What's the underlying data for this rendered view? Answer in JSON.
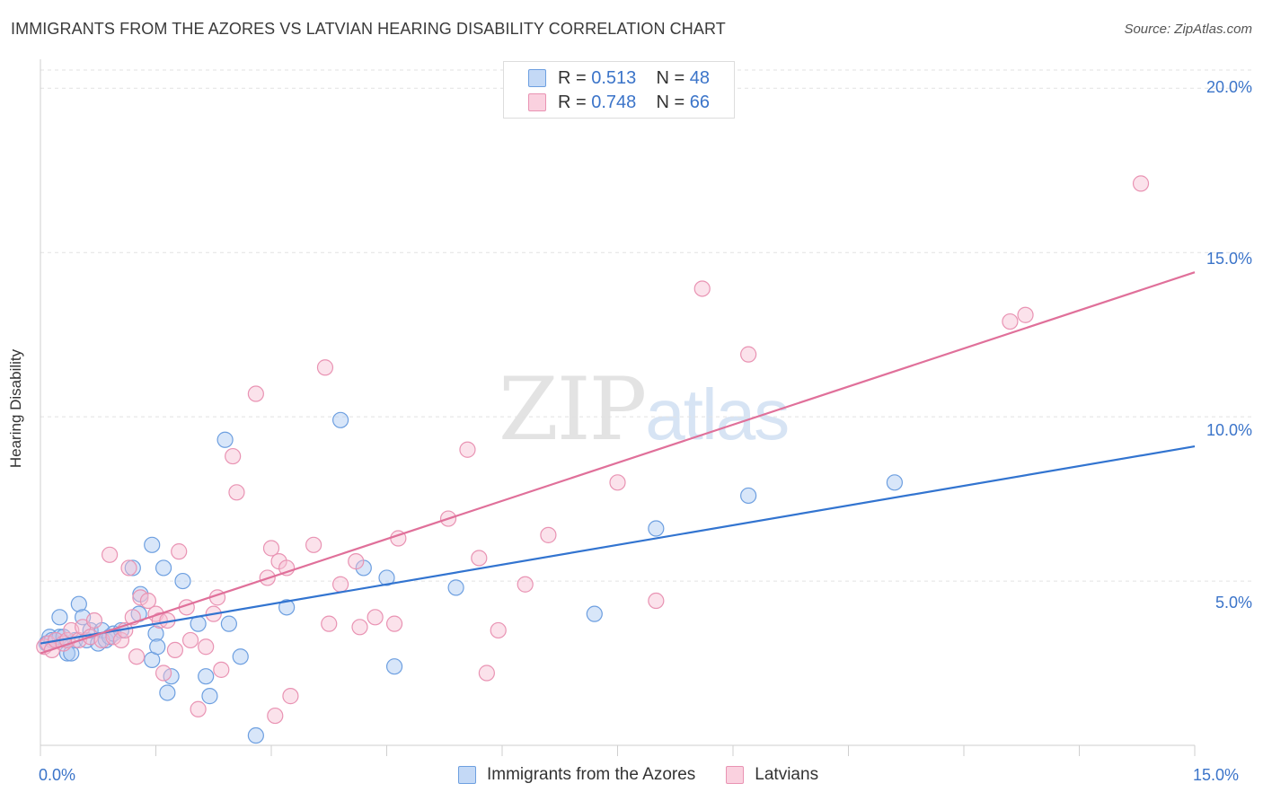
{
  "header": {
    "title": "IMMIGRANTS FROM THE AZORES VS LATVIAN HEARING DISABILITY CORRELATION CHART",
    "source": "Source: ZipAtlas.com"
  },
  "watermark": {
    "zip": "ZIP",
    "atlas": "atlas"
  },
  "legend_top": [
    {
      "r_label": "R =",
      "r_value": "0.513",
      "n_label": "N =",
      "n_value": "48"
    },
    {
      "r_label": "R =",
      "r_value": "0.748",
      "n_label": "N =",
      "n_value": "66"
    }
  ],
  "legend_bottom": [
    {
      "label": "Immigrants from the Azores"
    },
    {
      "label": "Latvians"
    }
  ],
  "axes": {
    "y_title": "Hearing Disability",
    "x_min_label": "0.0%",
    "x_max_label": "15.0%",
    "y_ticks": [
      "5.0%",
      "10.0%",
      "15.0%",
      "20.0%"
    ]
  },
  "colors": {
    "blue_fill": "#a9c8f2",
    "blue_stroke": "#6d9fe0",
    "blue_line": "#3274d0",
    "pink_fill": "#f6bfd2",
    "pink_stroke": "#e993b3",
    "pink_line": "#e0709a",
    "tick_label": "#3b74c9",
    "grid": "#e2e2e2"
  },
  "chart_data": {
    "type": "scatter",
    "title": "IMMIGRANTS FROM THE AZORES VS LATVIAN HEARING DISABILITY CORRELATION CHART",
    "xlabel": "",
    "ylabel": "Hearing Disability",
    "xlim": [
      0,
      15
    ],
    "ylim": [
      0,
      20.5
    ],
    "grid": true,
    "legend_position": "top-center",
    "series": [
      {
        "name": "Immigrants from the Azores",
        "r": 0.513,
        "n": 48,
        "trend": {
          "x": [
            0,
            15
          ],
          "y": [
            3.1,
            9.1
          ]
        },
        "points": [
          [
            0.08,
            3.1
          ],
          [
            0.12,
            3.3
          ],
          [
            0.15,
            3.2
          ],
          [
            0.2,
            3.2
          ],
          [
            0.25,
            3.3
          ],
          [
            0.25,
            3.9
          ],
          [
            0.35,
            2.8
          ],
          [
            0.4,
            2.8
          ],
          [
            0.45,
            3.2
          ],
          [
            0.5,
            4.3
          ],
          [
            0.55,
            3.9
          ],
          [
            0.6,
            3.2
          ],
          [
            0.65,
            3.5
          ],
          [
            0.75,
            3.1
          ],
          [
            0.8,
            3.5
          ],
          [
            0.85,
            3.2
          ],
          [
            0.9,
            3.3
          ],
          [
            0.95,
            3.4
          ],
          [
            1.05,
            3.5
          ],
          [
            1.2,
            5.4
          ],
          [
            1.28,
            4.0
          ],
          [
            1.3,
            4.6
          ],
          [
            1.45,
            2.6
          ],
          [
            1.45,
            6.1
          ],
          [
            1.5,
            3.4
          ],
          [
            1.52,
            3.0
          ],
          [
            1.6,
            5.4
          ],
          [
            1.65,
            1.6
          ],
          [
            1.7,
            2.1
          ],
          [
            1.85,
            5.0
          ],
          [
            2.05,
            3.7
          ],
          [
            2.15,
            2.1
          ],
          [
            2.2,
            1.5
          ],
          [
            2.4,
            9.3
          ],
          [
            2.45,
            3.7
          ],
          [
            2.6,
            2.7
          ],
          [
            2.8,
            0.3
          ],
          [
            3.2,
            4.2
          ],
          [
            3.9,
            9.9
          ],
          [
            4.2,
            5.4
          ],
          [
            4.5,
            5.1
          ],
          [
            4.6,
            2.4
          ],
          [
            5.4,
            4.8
          ],
          [
            7.2,
            4.0
          ],
          [
            8.0,
            6.6
          ],
          [
            9.2,
            7.6
          ],
          [
            11.1,
            8.0
          ],
          [
            0.3,
            3.3
          ]
        ]
      },
      {
        "name": "Latvians",
        "r": 0.748,
        "n": 66,
        "trend": {
          "x": [
            0,
            15
          ],
          "y": [
            2.8,
            14.4
          ]
        },
        "points": [
          [
            0.05,
            3.0
          ],
          [
            0.1,
            3.1
          ],
          [
            0.15,
            2.9
          ],
          [
            0.2,
            3.2
          ],
          [
            0.3,
            3.1
          ],
          [
            0.35,
            3.2
          ],
          [
            0.4,
            3.5
          ],
          [
            0.5,
            3.2
          ],
          [
            0.55,
            3.6
          ],
          [
            0.65,
            3.3
          ],
          [
            0.7,
            3.8
          ],
          [
            0.8,
            3.2
          ],
          [
            0.9,
            5.8
          ],
          [
            0.95,
            3.3
          ],
          [
            1.05,
            3.2
          ],
          [
            1.1,
            3.5
          ],
          [
            1.15,
            5.4
          ],
          [
            1.2,
            3.9
          ],
          [
            1.25,
            2.7
          ],
          [
            1.3,
            4.5
          ],
          [
            1.4,
            4.4
          ],
          [
            1.5,
            4.0
          ],
          [
            1.55,
            3.8
          ],
          [
            1.6,
            2.2
          ],
          [
            1.65,
            3.8
          ],
          [
            1.75,
            2.9
          ],
          [
            1.8,
            5.9
          ],
          [
            1.9,
            4.2
          ],
          [
            1.95,
            3.2
          ],
          [
            2.05,
            1.1
          ],
          [
            2.15,
            3.0
          ],
          [
            2.25,
            4.0
          ],
          [
            2.3,
            4.5
          ],
          [
            2.35,
            2.3
          ],
          [
            2.5,
            8.8
          ],
          [
            2.55,
            7.7
          ],
          [
            2.8,
            10.7
          ],
          [
            2.95,
            5.1
          ],
          [
            3.0,
            6.0
          ],
          [
            3.05,
            0.9
          ],
          [
            3.1,
            5.6
          ],
          [
            3.2,
            5.4
          ],
          [
            3.25,
            1.5
          ],
          [
            3.55,
            6.1
          ],
          [
            3.7,
            11.5
          ],
          [
            3.75,
            3.7
          ],
          [
            3.9,
            4.9
          ],
          [
            4.1,
            5.6
          ],
          [
            4.15,
            3.6
          ],
          [
            4.35,
            3.9
          ],
          [
            4.6,
            3.7
          ],
          [
            4.65,
            6.3
          ],
          [
            5.3,
            6.9
          ],
          [
            5.55,
            9.0
          ],
          [
            5.7,
            5.7
          ],
          [
            5.8,
            2.2
          ],
          [
            5.95,
            3.5
          ],
          [
            6.3,
            4.9
          ],
          [
            6.6,
            6.4
          ],
          [
            7.5,
            8.0
          ],
          [
            8.0,
            4.4
          ],
          [
            8.6,
            13.9
          ],
          [
            9.2,
            11.9
          ],
          [
            12.6,
            12.9
          ],
          [
            12.8,
            13.1
          ],
          [
            14.3,
            17.1
          ]
        ]
      }
    ]
  }
}
